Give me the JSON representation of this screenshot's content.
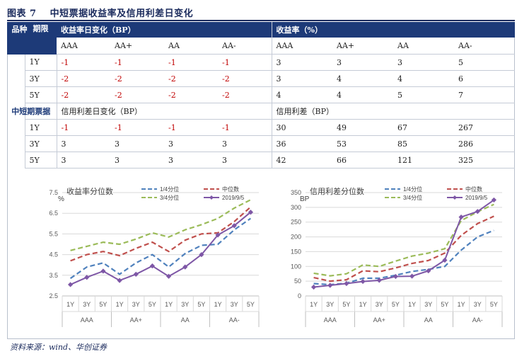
{
  "title": {
    "label": "图表 7",
    "text": "中短票据收益率及信用利差日变化"
  },
  "table": {
    "col1_header": "品种",
    "col2_header": "期限",
    "yield_change_header": "收益率日变化（BP）",
    "yield_header": "收益率（%）",
    "ratings": [
      "AAA",
      "AA+",
      "AA",
      "AA-"
    ],
    "section_label": "中短期票据",
    "rows_top": [
      {
        "term": "1Y",
        "chg": [
          "-1",
          "-1",
          "-1",
          "-1"
        ],
        "val": [
          "3",
          "3",
          "3",
          "5"
        ]
      },
      {
        "term": "3Y",
        "chg": [
          "-2",
          "-2",
          "-2",
          "-2"
        ],
        "val": [
          "3",
          "4",
          "4",
          "6"
        ]
      },
      {
        "term": "5Y",
        "chg": [
          "-2",
          "-2",
          "-2",
          "-2"
        ],
        "val": [
          "4",
          "4",
          "5",
          "7"
        ]
      }
    ],
    "spread_change_header": "信用利差日变化（BP）",
    "spread_header": "信用利差（BP）",
    "rows_bottom": [
      {
        "term": "1Y",
        "chg": [
          "-1",
          "-1",
          "-1",
          "-1"
        ],
        "val": [
          "30",
          "49",
          "67",
          "267"
        ]
      },
      {
        "term": "3Y",
        "chg": [
          "3",
          "3",
          "3",
          "3"
        ],
        "val": [
          "36",
          "53",
          "85",
          "286"
        ]
      },
      {
        "term": "5Y",
        "chg": [
          "3",
          "3",
          "3",
          "3"
        ],
        "val": [
          "42",
          "66",
          "121",
          "325"
        ]
      }
    ]
  },
  "chart_data": [
    {
      "type": "line",
      "title": "收益率分位数",
      "ylabel": "%",
      "x": [
        "1Y",
        "3Y",
        "5Y",
        "1Y",
        "3Y",
        "5Y",
        "1Y",
        "3Y",
        "5Y",
        "1Y",
        "3Y",
        "5Y"
      ],
      "groups": [
        "AAA",
        "AA+",
        "AA",
        "AA-"
      ],
      "ylim": [
        2.5,
        7.5
      ],
      "yticks": [
        "2.5",
        "3.5",
        "4.5",
        "5.5",
        "6.5",
        "7.5"
      ],
      "series": [
        {
          "name": "1/4分位",
          "color": "#4f81bd",
          "dash": true,
          "values": [
            3.35,
            3.9,
            4.1,
            3.55,
            4.1,
            4.5,
            3.9,
            4.55,
            4.95,
            5.0,
            5.7,
            6.25
          ]
        },
        {
          "name": "中位数",
          "color": "#c0504d",
          "dash": true,
          "values": [
            4.2,
            4.5,
            4.65,
            4.45,
            4.8,
            5.1,
            4.65,
            5.2,
            5.5,
            5.55,
            6.1,
            6.8
          ]
        },
        {
          "name": "3/4分位",
          "color": "#9bbb59",
          "dash": true,
          "values": [
            4.7,
            4.9,
            5.1,
            5.0,
            5.25,
            5.55,
            5.35,
            5.7,
            5.95,
            6.25,
            6.75,
            7.15
          ]
        },
        {
          "name": "2019/9/5",
          "color": "#7e57a6",
          "dash": false,
          "marker": true,
          "values": [
            3.05,
            3.4,
            3.7,
            3.25,
            3.55,
            3.95,
            3.45,
            3.9,
            4.5,
            5.45,
            5.9,
            6.55
          ]
        }
      ]
    },
    {
      "type": "line",
      "title": "信用利差分位数",
      "ylabel": "BP",
      "x": [
        "1Y",
        "3Y",
        "5Y",
        "1Y",
        "3Y",
        "5Y",
        "1Y",
        "3Y",
        "5Y",
        "1Y",
        "3Y",
        "5Y"
      ],
      "groups": [
        "AAA",
        "AA+",
        "AA",
        "AA-"
      ],
      "ylim": [
        0,
        350
      ],
      "yticks": [
        "0",
        "50",
        "100",
        "150",
        "200",
        "250",
        "300",
        "350"
      ],
      "series": [
        {
          "name": "1/4分位",
          "color": "#4f81bd",
          "dash": true,
          "values": [
            42,
            38,
            43,
            60,
            60,
            70,
            83,
            90,
            100,
            155,
            200,
            222
          ]
        },
        {
          "name": "中位数",
          "color": "#c0504d",
          "dash": true,
          "values": [
            62,
            50,
            55,
            85,
            82,
            95,
            110,
            120,
            145,
            205,
            245,
            270
          ]
        },
        {
          "name": "3/4分位",
          "color": "#9bbb59",
          "dash": true,
          "values": [
            77,
            68,
            75,
            105,
            100,
            118,
            135,
            145,
            160,
            255,
            285,
            310
          ]
        },
        {
          "name": "2019/9/5",
          "color": "#7e57a6",
          "dash": false,
          "marker": true,
          "values": [
            30,
            36,
            42,
            49,
            53,
            66,
            67,
            85,
            121,
            267,
            286,
            325
          ]
        }
      ]
    }
  ],
  "source": "资料来源：wind、华创证券"
}
